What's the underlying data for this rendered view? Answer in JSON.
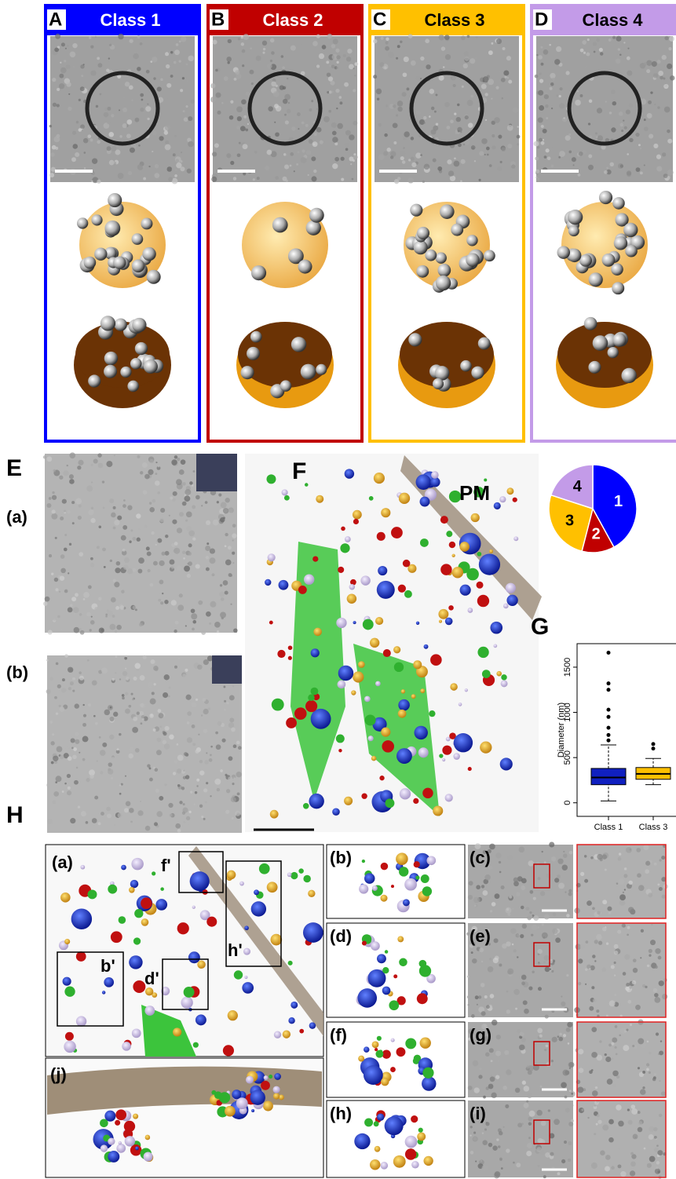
{
  "figure": {
    "classes": [
      {
        "letter": "A",
        "title": "Class 1",
        "frame_color": "#0000ff",
        "title_color": "#ffffff"
      },
      {
        "letter": "B",
        "title": "Class 2",
        "frame_color": "#c00000",
        "title_color": "#ffffff"
      },
      {
        "letter": "C",
        "title": "Class 3",
        "frame_color": "#ffc000",
        "title_color": "#000000"
      },
      {
        "letter": "D",
        "title": "Class 4",
        "frame_color": "#c39be8",
        "title_color": "#000000"
      }
    ],
    "E": {
      "letter": "E",
      "sub": [
        "(a)",
        "(b)"
      ]
    },
    "F": {
      "letter": "F",
      "pm": "PM"
    },
    "G": {
      "letter": "G"
    },
    "H": {
      "letter": "H",
      "sub": [
        "(a)",
        "(b)",
        "(c)",
        "(d)",
        "(e)",
        "(f)",
        "(g)",
        "(h)",
        "(i)",
        "(j)"
      ],
      "callouts": [
        "f'",
        "h'",
        "b'",
        "d'"
      ]
    }
  },
  "chart_data": [
    {
      "type": "pie",
      "categories": [
        "1",
        "2",
        "3",
        "4"
      ],
      "values": [
        42,
        12,
        26,
        20
      ],
      "colors": [
        "#0000ff",
        "#c00000",
        "#ffc000",
        "#c39be8"
      ]
    },
    {
      "type": "box",
      "y_label": "Diameter (nm)",
      "categories": [
        "Class 1",
        "Class 3"
      ],
      "boxes": [
        {
          "color": "#1020c0",
          "whisker_low": 20,
          "q1": 200,
          "median": 280,
          "q3": 380,
          "whisker_high": 640,
          "outliers": [
            690,
            750,
            830,
            950,
            1030,
            1250,
            1320,
            1660
          ]
        },
        {
          "color": "#ffc000",
          "whisker_low": 200,
          "q1": 260,
          "median": 320,
          "q3": 390,
          "whisker_high": 490,
          "outliers": [
            600,
            650
          ]
        }
      ],
      "ylim": [
        -150,
        1760
      ],
      "yticks": [
        0,
        500,
        1000,
        1500
      ]
    }
  ]
}
